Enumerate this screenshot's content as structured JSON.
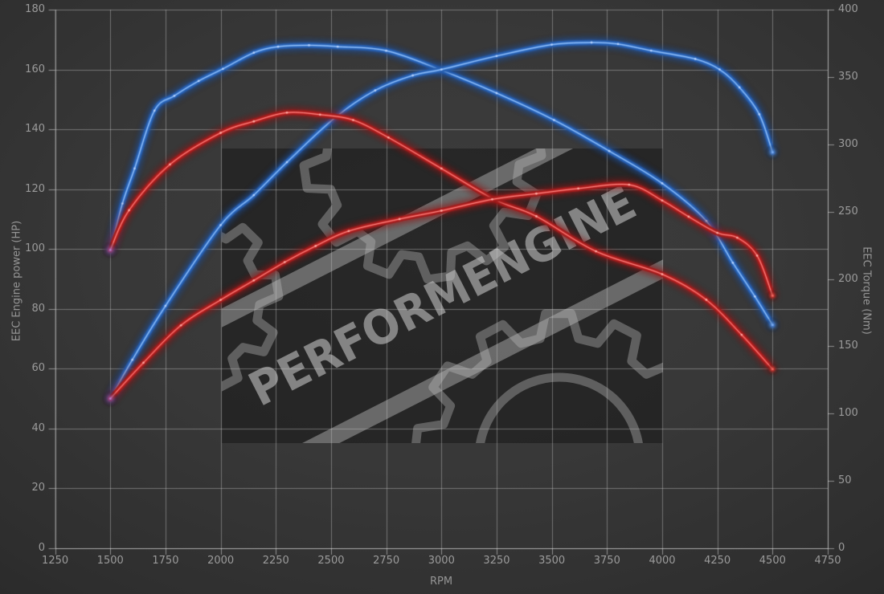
{
  "axes": {
    "x": {
      "title": "RPM",
      "min": 1250,
      "max": 4750,
      "step": 250,
      "tick_values": [
        1250,
        1500,
        1750,
        2000,
        2250,
        2500,
        2750,
        3000,
        3250,
        3500,
        3750,
        4000,
        4250,
        4500,
        4750
      ],
      "tick_labels": [
        "1250",
        "1500",
        "1750",
        "2000",
        "2250",
        "2500",
        "2750",
        "3000",
        "3250",
        "3500",
        "3750",
        "4000",
        "4250",
        "4500",
        "4750"
      ]
    },
    "y_left": {
      "title": "EEC Engine power (HP)",
      "min": 0,
      "max": 180,
      "step": 20,
      "tick_values": [
        0,
        20,
        40,
        60,
        80,
        100,
        120,
        140,
        160,
        180
      ],
      "tick_labels": [
        "0",
        "20",
        "40",
        "60",
        "80",
        "100",
        "120",
        "140",
        "160",
        "180"
      ]
    },
    "y_right": {
      "title": "EEC Torque (Nm)",
      "min": 0,
      "max": 400,
      "step": 50,
      "tick_values": [
        0,
        50,
        100,
        150,
        200,
        250,
        300,
        350,
        400
      ],
      "tick_labels": [
        "0",
        "50",
        "100",
        "150",
        "200",
        "250",
        "300",
        "350",
        "400"
      ]
    }
  },
  "watermark": {
    "text": "PERFORMENGINE"
  },
  "colors": {
    "blue_core": "#4e92e6",
    "blue_glow": "#1c4f9e",
    "blue_hot": "#bdd6ff",
    "red_core": "#e03535",
    "red_glow": "#8e1717",
    "red_hot": "#ffb3aa",
    "start_blob": "#a070dc",
    "grid": "rgba(210,210,210,0.40)",
    "axis_line": "rgba(220,220,220,0.55)",
    "label_text": "#9b9b9b"
  },
  "chart_data": {
    "type": "line",
    "xlabel": "RPM",
    "ylabel_left": "EEC Engine power (HP)",
    "ylabel_right": "EEC Torque (Nm)",
    "xlim": [
      1250,
      4750
    ],
    "ylim_left": [
      0,
      180
    ],
    "ylim_right": [
      0,
      400
    ],
    "grid": true,
    "legend": "none",
    "series": [
      {
        "name": "torque-blue",
        "unit": "Nm",
        "axis": "right",
        "color_role": "blue",
        "points": [
          [
            1500,
            221.5
          ],
          [
            1555,
            256
          ],
          [
            1610,
            282
          ],
          [
            1700,
            325
          ],
          [
            1790,
            336
          ],
          [
            1900,
            347
          ],
          [
            2010,
            356
          ],
          [
            2150,
            368
          ],
          [
            2260,
            372.5
          ],
          [
            2400,
            373.5
          ],
          [
            2530,
            372.5
          ],
          [
            2750,
            369.5
          ],
          [
            3000,
            355
          ],
          [
            3250,
            338
          ],
          [
            3510,
            318
          ],
          [
            3760,
            295
          ],
          [
            4000,
            271
          ],
          [
            4200,
            243
          ],
          [
            4320,
            212
          ],
          [
            4420,
            187
          ],
          [
            4500,
            165.8
          ]
        ]
      },
      {
        "name": "power-blue",
        "unit": "HP",
        "axis": "left",
        "color_role": "blue",
        "points": [
          [
            1500,
            50
          ],
          [
            1600,
            63
          ],
          [
            1750,
            81
          ],
          [
            2000,
            108
          ],
          [
            2150,
            118
          ],
          [
            2300,
            129
          ],
          [
            2520,
            144
          ],
          [
            2700,
            153
          ],
          [
            2870,
            158
          ],
          [
            3000,
            160
          ],
          [
            3250,
            164.5
          ],
          [
            3500,
            168.3
          ],
          [
            3680,
            169
          ],
          [
            3800,
            168.5
          ],
          [
            3950,
            166.3
          ],
          [
            4150,
            163.5
          ],
          [
            4260,
            160
          ],
          [
            4350,
            154
          ],
          [
            4440,
            145
          ],
          [
            4500,
            132.3
          ]
        ]
      },
      {
        "name": "torque-red",
        "unit": "Nm",
        "axis": "right",
        "color_role": "red",
        "points": [
          [
            1500,
            221.5
          ],
          [
            1585,
            251
          ],
          [
            1770,
            285
          ],
          [
            2000,
            308.5
          ],
          [
            2150,
            317
          ],
          [
            2300,
            323.5
          ],
          [
            2450,
            322
          ],
          [
            2600,
            318
          ],
          [
            2760,
            305
          ],
          [
            3000,
            282
          ],
          [
            3240,
            259
          ],
          [
            3430,
            246.5
          ],
          [
            3700,
            220.5
          ],
          [
            4000,
            203.5
          ],
          [
            4200,
            184.5
          ],
          [
            4360,
            158.5
          ],
          [
            4500,
            133
          ]
        ]
      },
      {
        "name": "power-red",
        "unit": "HP",
        "axis": "left",
        "color_role": "red",
        "points": [
          [
            1500,
            50
          ],
          [
            1650,
            62
          ],
          [
            1820,
            74.5
          ],
          [
            2000,
            83
          ],
          [
            2150,
            89.5
          ],
          [
            2290,
            95.6
          ],
          [
            2430,
            101
          ],
          [
            2580,
            106
          ],
          [
            2810,
            110
          ],
          [
            3000,
            112.8
          ],
          [
            3230,
            116.6
          ],
          [
            3430,
            118.5
          ],
          [
            3620,
            120.2
          ],
          [
            3850,
            121.5
          ],
          [
            4000,
            116.2
          ],
          [
            4120,
            110.8
          ],
          [
            4250,
            105.4
          ],
          [
            4340,
            103.8
          ],
          [
            4430,
            97.8
          ],
          [
            4500,
            84.4
          ]
        ]
      }
    ]
  }
}
